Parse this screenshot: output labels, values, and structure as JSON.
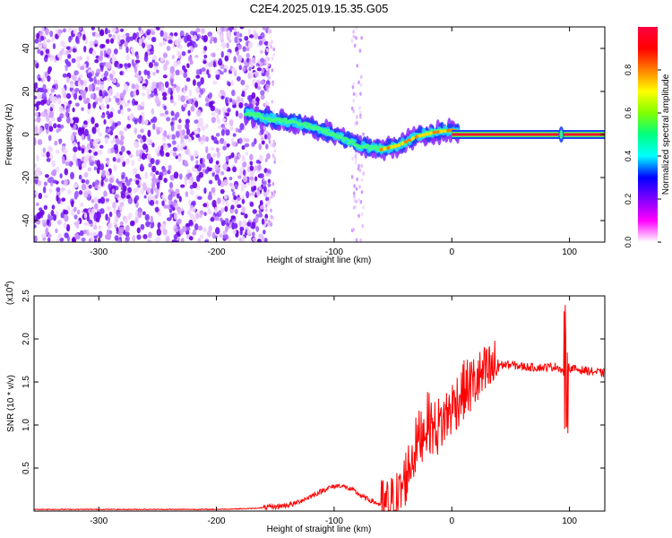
{
  "chart_data": [
    {
      "type": "heatmap",
      "title": "C2E4.2025.019.15.35.G05",
      "xlabel": "Height of straight line (km)",
      "ylabel": "Frequency (Hz)",
      "xlim": [
        -355,
        130
      ],
      "ylim": [
        -50,
        50
      ],
      "xticks": [
        "-300",
        "-200",
        "-100",
        "0",
        "100"
      ],
      "yticks": [
        "-40",
        "-20",
        "0",
        "20",
        "40"
      ],
      "colorbar": {
        "label": "Normalized spectral amplitude",
        "ticks": [
          "0.0",
          "0.2",
          "0.4",
          "0.6",
          "0.8"
        ],
        "range": [
          0,
          1
        ],
        "colors": [
          "#ffffff",
          "#ff00ff",
          "#8000ff",
          "#0000ff",
          "#00ffff",
          "#00ff80",
          "#80ff00",
          "#ffff00",
          "#ff8000",
          "#ff0000",
          "#ff0040"
        ]
      },
      "noise_region_x": [
        -355,
        -155
      ],
      "tone_track": [
        {
          "x": -175,
          "y": 10
        },
        {
          "x": -160,
          "y": 8
        },
        {
          "x": -140,
          "y": 6
        },
        {
          "x": -120,
          "y": 4
        },
        {
          "x": -100,
          "y": 0
        },
        {
          "x": -80,
          "y": -5
        },
        {
          "x": -60,
          "y": -7
        },
        {
          "x": -45,
          "y": -5
        },
        {
          "x": -30,
          "y": -1
        },
        {
          "x": -15,
          "y": 1
        },
        {
          "x": 0,
          "y": 2
        },
        {
          "x": 10,
          "y": 1
        },
        {
          "x": 50,
          "y": 0
        },
        {
          "x": 90,
          "y": 0
        },
        {
          "x": 130,
          "y": 0
        }
      ]
    },
    {
      "type": "line",
      "title": "",
      "xlabel": "Height of straight line (km)",
      "ylabel": "SNR (10 * v/v)",
      "scale_label": "(x10",
      "scale_exponent": "4",
      "scale_suffix": ")",
      "xlim": [
        -355,
        130
      ],
      "ylim": [
        0,
        2.5
      ],
      "xticks": [
        "-300",
        "-200",
        "-100",
        "0",
        "100"
      ],
      "yticks": [
        "0.5",
        "1.0",
        "1.5",
        "2.0",
        "2.5"
      ],
      "line_color": "#ff0000",
      "series": [
        {
          "x": [
            -355,
            -300,
            -250,
            -200,
            -170,
            -150,
            -135,
            -120,
            -105,
            -95,
            -85,
            -75,
            -65,
            -55,
            -45,
            -38,
            -32,
            -26,
            -20,
            -15,
            -10,
            -5,
            0,
            10,
            20,
            30,
            40,
            50,
            60,
            70,
            80,
            90,
            96,
            98,
            100,
            110,
            120,
            130
          ],
          "y": [
            0.02,
            0.02,
            0.02,
            0.02,
            0.03,
            0.05,
            0.08,
            0.17,
            0.27,
            0.3,
            0.25,
            0.16,
            0.1,
            0.04,
            0.15,
            0.45,
            0.7,
            0.9,
            1.05,
            0.95,
            1.0,
            1.1,
            1.2,
            1.4,
            1.5,
            1.6,
            1.7,
            1.7,
            1.68,
            1.67,
            1.67,
            1.68,
            1.6,
            1.7,
            1.66,
            1.64,
            1.62,
            1.6
          ]
        }
      ]
    }
  ]
}
